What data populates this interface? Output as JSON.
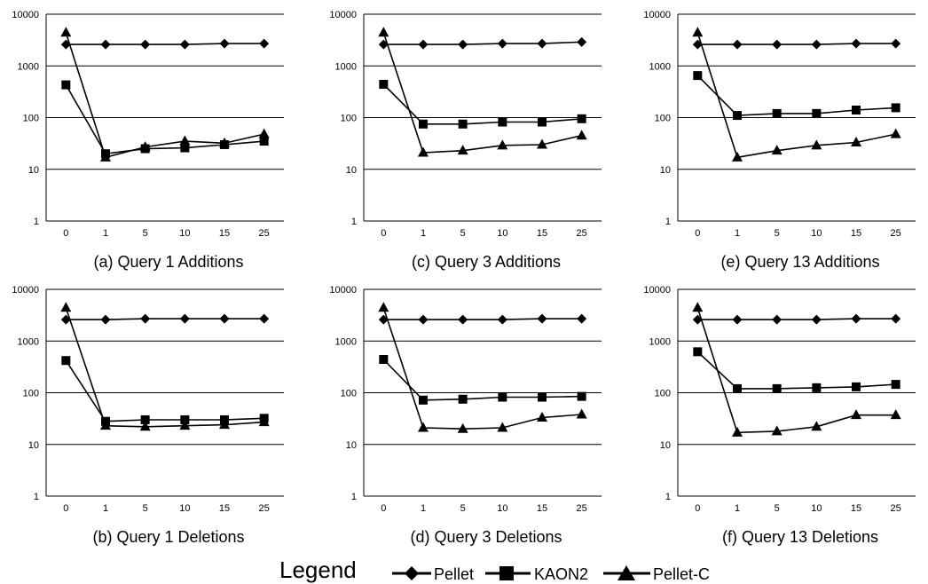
{
  "chart_data": [
    {
      "type": "line",
      "scale": "log",
      "ylim": [
        1,
        10000
      ],
      "grid": true,
      "caption": "(a) Query 1 Additions",
      "categories": [
        "0",
        "1",
        "5",
        "10",
        "15",
        "25"
      ],
      "yticks": [
        "10000",
        "1000",
        "100",
        "10",
        "1"
      ],
      "series": [
        {
          "name": "Pellet",
          "values": [
            2600,
            2600,
            2600,
            2600,
            2700,
            2700
          ]
        },
        {
          "name": "KAON2",
          "values": [
            430,
            20,
            25,
            26,
            30,
            35
          ]
        },
        {
          "name": "Pellet-C",
          "values": [
            4400,
            17,
            27,
            35,
            32,
            48
          ]
        }
      ]
    },
    {
      "type": "line",
      "scale": "log",
      "ylim": [
        1,
        10000
      ],
      "grid": true,
      "caption": "(c) Query 3 Additions",
      "categories": [
        "0",
        "1",
        "5",
        "10",
        "15",
        "25"
      ],
      "yticks": [
        "10000",
        "1000",
        "100",
        "10",
        "1"
      ],
      "series": [
        {
          "name": "Pellet",
          "values": [
            2600,
            2600,
            2600,
            2700,
            2700,
            2900
          ]
        },
        {
          "name": "KAON2",
          "values": [
            440,
            75,
            75,
            82,
            82,
            95
          ]
        },
        {
          "name": "Pellet-C",
          "values": [
            4400,
            21,
            23,
            29,
            30,
            45
          ]
        }
      ]
    },
    {
      "type": "line",
      "scale": "log",
      "ylim": [
        1,
        10000
      ],
      "grid": true,
      "caption": "(e) Query 13 Additions",
      "categories": [
        "0",
        "1",
        "5",
        "10",
        "15",
        "25"
      ],
      "yticks": [
        "10000",
        "1000",
        "100",
        "10",
        "1"
      ],
      "series": [
        {
          "name": "Pellet",
          "values": [
            2600,
            2600,
            2600,
            2600,
            2700,
            2700
          ]
        },
        {
          "name": "KAON2",
          "values": [
            650,
            110,
            120,
            120,
            140,
            155
          ]
        },
        {
          "name": "Pellet-C",
          "values": [
            4400,
            17,
            23,
            29,
            33,
            48
          ]
        }
      ]
    },
    {
      "type": "line",
      "scale": "log",
      "ylim": [
        1,
        10000
      ],
      "grid": true,
      "caption": "(b) Query 1 Deletions",
      "categories": [
        "0",
        "1",
        "5",
        "10",
        "15",
        "25"
      ],
      "yticks": [
        "10000",
        "1000",
        "100",
        "10",
        "1"
      ],
      "series": [
        {
          "name": "Pellet",
          "values": [
            2600,
            2600,
            2700,
            2700,
            2700,
            2700
          ]
        },
        {
          "name": "KAON2",
          "values": [
            420,
            28,
            30,
            30,
            30,
            32
          ]
        },
        {
          "name": "Pellet-C",
          "values": [
            4400,
            23,
            22,
            23,
            24,
            27
          ]
        }
      ]
    },
    {
      "type": "line",
      "scale": "log",
      "ylim": [
        1,
        10000
      ],
      "grid": true,
      "caption": "(d) Query 3 Deletions",
      "categories": [
        "0",
        "1",
        "5",
        "10",
        "15",
        "25"
      ],
      "yticks": [
        "10000",
        "1000",
        "100",
        "10",
        "1"
      ],
      "series": [
        {
          "name": "Pellet",
          "values": [
            2600,
            2600,
            2600,
            2600,
            2700,
            2700
          ]
        },
        {
          "name": "KAON2",
          "values": [
            440,
            72,
            75,
            82,
            82,
            85
          ]
        },
        {
          "name": "Pellet-C",
          "values": [
            4400,
            21,
            20,
            21,
            33,
            38
          ]
        }
      ]
    },
    {
      "type": "line",
      "scale": "log",
      "ylim": [
        1,
        10000
      ],
      "grid": true,
      "caption": "(f) Query 13 Deletions",
      "categories": [
        "0",
        "1",
        "5",
        "10",
        "15",
        "25"
      ],
      "yticks": [
        "10000",
        "1000",
        "100",
        "10",
        "1"
      ],
      "series": [
        {
          "name": "Pellet",
          "values": [
            2600,
            2600,
            2600,
            2600,
            2700,
            2700
          ]
        },
        {
          "name": "KAON2",
          "values": [
            620,
            120,
            120,
            125,
            130,
            145
          ]
        },
        {
          "name": "Pellet-C",
          "values": [
            4400,
            17,
            18,
            22,
            37,
            37
          ]
        }
      ]
    }
  ],
  "legend": {
    "title": "Legend",
    "items": [
      {
        "label": "Pellet",
        "marker": "diamond"
      },
      {
        "label": "KAON2",
        "marker": "square"
      },
      {
        "label": "Pellet-C",
        "marker": "triangle"
      }
    ]
  }
}
